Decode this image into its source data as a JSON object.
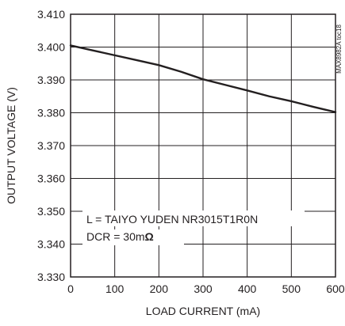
{
  "chart_data": {
    "type": "line",
    "title": "",
    "xlabel": "LOAD CURRENT (mA)",
    "ylabel": "OUTPUT VOLTAGE (V)",
    "xlim": [
      0,
      600
    ],
    "ylim": [
      3.33,
      3.41
    ],
    "x_ticks": [
      "0",
      "100",
      "200",
      "300",
      "400",
      "500",
      "600"
    ],
    "y_ticks": [
      "3.330",
      "3.340",
      "3.350",
      "3.360",
      "3.370",
      "3.380",
      "3.390",
      "3.400",
      "3.410"
    ],
    "grid": true,
    "series": [
      {
        "x": [
          0,
          50,
          100,
          150,
          200,
          250,
          300,
          350,
          400,
          450,
          500,
          550,
          600
        ],
        "y": [
          3.4005,
          3.399,
          3.3975,
          3.396,
          3.3945,
          3.3925,
          3.3902,
          3.3885,
          3.3868,
          3.385,
          3.3835,
          3.3818,
          3.3802
        ]
      }
    ],
    "annotations": {
      "line1": "L = TAIYO YUDEN NR3015T1R0N",
      "line2_prefix": "DCR = 30m",
      "line2_symbol": "Ω",
      "figure_id": "MAX8982A toc18"
    },
    "colors": {
      "line": "#231f20",
      "grid": "#231f20",
      "background": "#ffffff"
    }
  }
}
